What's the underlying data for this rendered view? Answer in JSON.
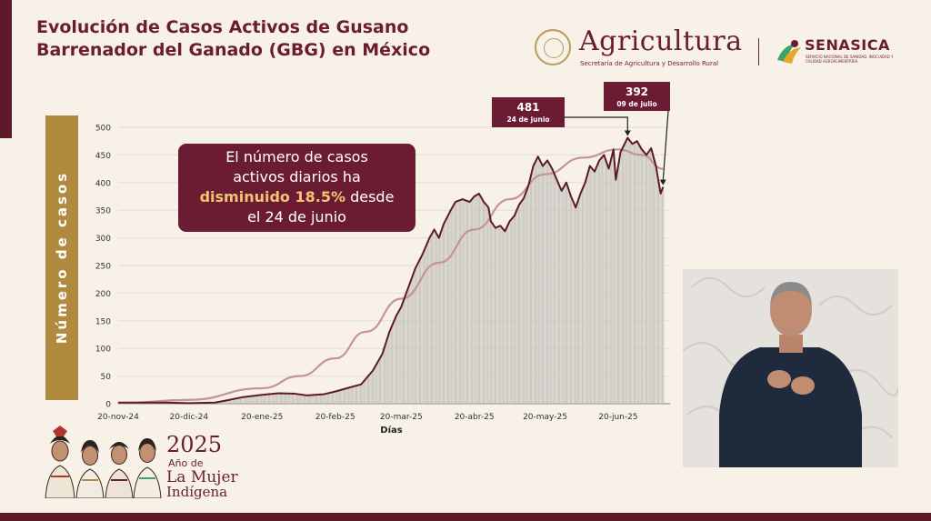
{
  "title": "Evolución de Casos Activos de Gusano Barrenador del Ganado (GBG) en México",
  "header": {
    "agriculture_logo_text": "Agricultura",
    "agriculture_subtitle": "Secretaría de Agricultura y Desarrollo Rural",
    "senasica_logo_text": "SENASICA",
    "senasica_subtitle": "SERVICIO NACIONAL DE SANIDAD, INOCUIDAD Y CALIDAD AGROALIMENTARIA",
    "brand_color": "#6b1c33"
  },
  "callout": {
    "line1": "El número de casos",
    "line2": "activos diarios ha",
    "highlight": "disminuido 18.5%",
    "line3_rest": " desde",
    "line4": "el 24 de junio"
  },
  "footer_brand": {
    "year": "2025",
    "line1": "Año de",
    "line2": "La Mujer",
    "line3": "Indígena"
  },
  "chart_data": {
    "type": "bar",
    "xlabel": "Días",
    "ylabel": "Número de casos",
    "ylim": [
      0,
      500
    ],
    "yticks": [
      0,
      50,
      100,
      150,
      200,
      250,
      300,
      350,
      400,
      450,
      500
    ],
    "x_start": "2024-11-20",
    "x_end": "2025-07-12",
    "xtick_labels": [
      "20-nov-24",
      "20-dic-24",
      "20-ene-25",
      "20-feb-25",
      "20-mar-25",
      "20-abr-25",
      "20-may-25",
      "20-jun-25"
    ],
    "xtick_dates": [
      "2024-11-20",
      "2024-12-20",
      "2025-01-20",
      "2025-02-20",
      "2025-03-20",
      "2025-04-20",
      "2025-05-20",
      "2025-06-20"
    ],
    "series": [
      {
        "kind": "bars_with_outline",
        "points": [
          [
            "2024-11-20",
            2
          ],
          [
            "2024-12-10",
            2
          ],
          [
            "2024-12-20",
            1
          ],
          [
            "2024-12-31",
            2
          ],
          [
            "2025-01-05",
            6
          ],
          [
            "2025-01-12",
            12
          ],
          [
            "2025-01-20",
            16
          ],
          [
            "2025-01-27",
            19
          ],
          [
            "2025-02-03",
            18
          ],
          [
            "2025-02-08",
            15
          ],
          [
            "2025-02-15",
            17
          ],
          [
            "2025-02-20",
            22
          ],
          [
            "2025-02-25",
            28
          ],
          [
            "2025-03-03",
            35
          ],
          [
            "2025-03-08",
            60
          ],
          [
            "2025-03-12",
            90
          ],
          [
            "2025-03-15",
            130
          ],
          [
            "2025-03-18",
            160
          ],
          [
            "2025-03-20",
            175
          ],
          [
            "2025-03-23",
            210
          ],
          [
            "2025-03-26",
            245
          ],
          [
            "2025-03-29",
            270
          ],
          [
            "2025-04-01",
            300
          ],
          [
            "2025-04-03",
            315
          ],
          [
            "2025-04-05",
            300
          ],
          [
            "2025-04-07",
            325
          ],
          [
            "2025-04-10",
            350
          ],
          [
            "2025-04-12",
            365
          ],
          [
            "2025-04-15",
            370
          ],
          [
            "2025-04-18",
            365
          ],
          [
            "2025-04-20",
            375
          ],
          [
            "2025-04-22",
            380
          ],
          [
            "2025-04-24",
            365
          ],
          [
            "2025-04-26",
            355
          ],
          [
            "2025-04-27",
            330
          ],
          [
            "2025-04-29",
            318
          ],
          [
            "2025-05-01",
            322
          ],
          [
            "2025-05-03",
            312
          ],
          [
            "2025-05-05",
            330
          ],
          [
            "2025-05-07",
            340
          ],
          [
            "2025-05-09",
            360
          ],
          [
            "2025-05-11",
            372
          ],
          [
            "2025-05-13",
            395
          ],
          [
            "2025-05-15",
            430
          ],
          [
            "2025-05-17",
            447
          ],
          [
            "2025-05-19",
            430
          ],
          [
            "2025-05-21",
            440
          ],
          [
            "2025-05-23",
            425
          ],
          [
            "2025-05-25",
            405
          ],
          [
            "2025-05-27",
            385
          ],
          [
            "2025-05-29",
            400
          ],
          [
            "2025-05-31",
            375
          ],
          [
            "2025-06-02",
            355
          ],
          [
            "2025-06-04",
            380
          ],
          [
            "2025-06-06",
            400
          ],
          [
            "2025-06-08",
            430
          ],
          [
            "2025-06-10",
            420
          ],
          [
            "2025-06-12",
            440
          ],
          [
            "2025-06-14",
            450
          ],
          [
            "2025-06-16",
            425
          ],
          [
            "2025-06-18",
            460
          ],
          [
            "2025-06-19",
            405
          ],
          [
            "2025-06-21",
            455
          ],
          [
            "2025-06-24",
            481
          ],
          [
            "2025-06-26",
            470
          ],
          [
            "2025-06-28",
            475
          ],
          [
            "2025-06-30",
            460
          ],
          [
            "2025-07-02",
            450
          ],
          [
            "2025-07-04",
            462
          ],
          [
            "2025-07-06",
            430
          ],
          [
            "2025-07-07",
            405
          ],
          [
            "2025-07-08",
            380
          ],
          [
            "2025-07-09",
            392
          ]
        ],
        "color": "#5c1a2b"
      },
      {
        "kind": "smoothed_trend",
        "points": [
          [
            "2024-11-20",
            1
          ],
          [
            "2024-12-20",
            7
          ],
          [
            "2025-01-20",
            28
          ],
          [
            "2025-02-05",
            50
          ],
          [
            "2025-02-20",
            82
          ],
          [
            "2025-03-05",
            130
          ],
          [
            "2025-03-20",
            190
          ],
          [
            "2025-04-05",
            255
          ],
          [
            "2025-04-20",
            315
          ],
          [
            "2025-05-05",
            370
          ],
          [
            "2025-05-20",
            415
          ],
          [
            "2025-06-05",
            445
          ],
          [
            "2025-06-20",
            460
          ],
          [
            "2025-06-30",
            450
          ],
          [
            "2025-07-09",
            425
          ]
        ],
        "color": "#c4929a"
      }
    ],
    "annotations": [
      {
        "value": "481",
        "date_label": "24 de junio",
        "x": "2025-06-24",
        "y": 481
      },
      {
        "value": "392",
        "date_label": "09 de julio",
        "x": "2025-07-09",
        "y": 392
      }
    ]
  }
}
